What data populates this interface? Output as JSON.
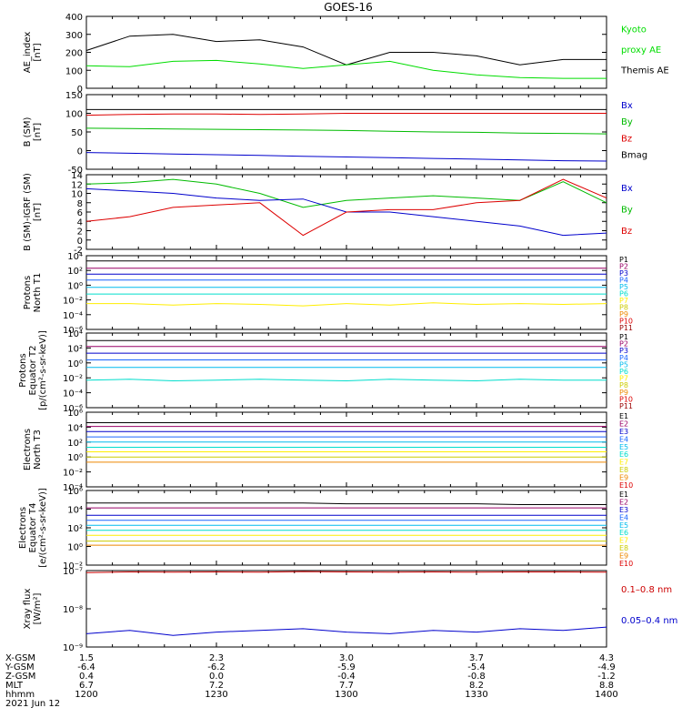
{
  "title": "GOES-16",
  "date_label": "2021 Jun 12",
  "panels": [
    {
      "ylabel": [
        "AE_index",
        "[nT]"
      ],
      "ticks": [
        "400",
        "300",
        "200",
        "100",
        "0"
      ],
      "legend": [
        {
          "text": "Kyoto",
          "color": "#00dd00"
        },
        {
          "text": "proxy AE",
          "color": "#00dd00"
        },
        {
          "text": "Themis AE",
          "color": "#000000"
        }
      ]
    },
    {
      "ylabel": [
        "B (SM)",
        "[nT]"
      ],
      "ticks": [
        "150",
        "100",
        "50",
        "0",
        "-50"
      ],
      "legend": [
        {
          "text": "Bx",
          "color": "#0000cc"
        },
        {
          "text": "By",
          "color": "#00bb00"
        },
        {
          "text": "Bz",
          "color": "#dd0000"
        },
        {
          "text": "Bmag",
          "color": "#000000"
        }
      ]
    },
    {
      "ylabel": [
        "B (SM)-IGRF (SM)",
        "[nT]"
      ],
      "ticks": [
        "14",
        "12",
        "10",
        "8",
        "6",
        "4",
        "2",
        "0",
        "-2"
      ],
      "legend": [
        {
          "text": "Bx",
          "color": "#0000cc"
        },
        {
          "text": "By",
          "color": "#00bb00"
        },
        {
          "text": "Bz",
          "color": "#dd0000"
        }
      ]
    },
    {
      "ylabel": [
        "Protons",
        "North T1"
      ],
      "ticks": [
        "10⁴",
        "10²",
        "10⁰",
        "10⁻²",
        "10⁻⁴",
        "10⁻⁶"
      ],
      "channels": [
        "P1",
        "P2",
        "P3",
        "P4",
        "P5",
        "P6",
        "P7",
        "P8",
        "P9",
        "P10",
        "P11"
      ]
    },
    {
      "ylabel": [
        "Protons",
        "Equator T2",
        "[p/(cm²-s-sr-keV)]"
      ],
      "ticks": [
        "10⁴",
        "10²",
        "10⁰",
        "10⁻²",
        "10⁻⁴",
        "10⁻⁶"
      ],
      "channels": [
        "P1",
        "P2",
        "P3",
        "P4",
        "P5",
        "P6",
        "P7",
        "P8",
        "P9",
        "P10",
        "P11"
      ]
    },
    {
      "ylabel": [
        "Electrons",
        "North T3"
      ],
      "ticks": [
        "10⁶",
        "10⁴",
        "10²",
        "10⁰",
        "10⁻²",
        "10⁻⁴"
      ],
      "channels": [
        "E1",
        "E2",
        "E3",
        "E4",
        "E5",
        "E6",
        "E7",
        "E8",
        "E9",
        "E10"
      ]
    },
    {
      "ylabel": [
        "Electrons",
        "Equator T4",
        "[e/(cm²-s-sr-keV)]"
      ],
      "ticks": [
        "10⁶",
        "10⁴",
        "10²",
        "10⁰",
        "10⁻²"
      ],
      "channels": [
        "E1",
        "E2",
        "E3",
        "E4",
        "E5",
        "E6",
        "E7",
        "E8",
        "E9",
        "E10"
      ]
    },
    {
      "ylabel": [
        "Xray flux",
        "[W/m²]"
      ],
      "ticks": [
        "10⁻⁷",
        "10⁻⁸",
        "10⁻⁹"
      ],
      "legend": [
        {
          "text": "0.1–0.8 nm",
          "color": "#cc0000"
        },
        {
          "text": "0.05–0.4 nm",
          "color": "#0000cc"
        }
      ]
    }
  ],
  "proton_colors": [
    "#000000",
    "#990066",
    "#0000cc",
    "#1a66ff",
    "#00bbee",
    "#00ddcc",
    "#ffee00",
    "#cccc00",
    "#ee8800",
    "#dd0000",
    "#990000"
  ],
  "electron_colors": [
    "#000000",
    "#990066",
    "#0000cc",
    "#1a66ff",
    "#00bbee",
    "#00ddcc",
    "#ffee00",
    "#cccc00",
    "#ee8800",
    "#dd0000",
    "#990000"
  ],
  "ephemeris": {
    "rows": [
      {
        "label": "X-GSM",
        "values": [
          "1.5",
          "2.3",
          "3.0",
          "3.7",
          "4.3"
        ]
      },
      {
        "label": "Y-GSM",
        "values": [
          "-6.4",
          "-6.2",
          "-5.9",
          "-5.4",
          "-4.9"
        ]
      },
      {
        "label": "Z-GSM",
        "values": [
          "0.4",
          "0.0",
          "-0.4",
          "-0.8",
          "-1.2"
        ]
      },
      {
        "label": "MLT",
        "values": [
          "6.7",
          "7.2",
          "7.7",
          "8.2",
          "8.8"
        ]
      },
      {
        "label": "hhmm",
        "values": [
          "1200",
          "1230",
          "1300",
          "1330",
          "1400"
        ]
      }
    ]
  },
  "chart_data": [
    {
      "type": "line",
      "ylabel": "AE_index [nT]",
      "ylim": [
        0,
        400
      ],
      "x": [
        1200,
        1210,
        1220,
        1230,
        1240,
        1250,
        1300,
        1310,
        1320,
        1330,
        1340,
        1350,
        1400
      ],
      "series": [
        {
          "name": "Themis AE",
          "values": [
            210,
            290,
            300,
            260,
            270,
            230,
            130,
            200,
            200,
            180,
            130,
            160,
            160
          ]
        },
        {
          "name": "Kyoto proxy AE",
          "values": [
            125,
            120,
            150,
            155,
            135,
            110,
            130,
            150,
            100,
            75,
            60,
            55,
            55
          ]
        }
      ]
    },
    {
      "type": "line",
      "ylabel": "B (SM) [nT]",
      "ylim": [
        -50,
        150
      ],
      "series": [
        {
          "name": "Bmag",
          "values": [
            110,
            110,
            110,
            110,
            110,
            110,
            110,
            110,
            110,
            110,
            110,
            110,
            110
          ]
        },
        {
          "name": "Bz",
          "values": [
            95,
            97,
            98,
            98,
            97,
            98,
            100,
            100,
            100,
            100,
            100,
            100,
            100
          ]
        },
        {
          "name": "By",
          "values": [
            60,
            59,
            58,
            57,
            56,
            55,
            54,
            52,
            50,
            49,
            47,
            46,
            45
          ]
        },
        {
          "name": "Bx",
          "values": [
            -5,
            -7,
            -9,
            -11,
            -13,
            -15,
            -17,
            -19,
            -21,
            -23,
            -25,
            -27,
            -28
          ]
        }
      ]
    },
    {
      "type": "line",
      "ylabel": "B (SM)-IGRF (SM) [nT]",
      "ylim": [
        -2,
        14
      ],
      "series": [
        {
          "name": "By",
          "values": [
            12,
            12.3,
            13,
            12,
            10,
            7,
            8.5,
            9,
            9.5,
            9,
            8.5,
            12.5,
            8
          ]
        },
        {
          "name": "Bx",
          "values": [
            11,
            10.5,
            10,
            9,
            8.5,
            8.8,
            6,
            6,
            5,
            4,
            3,
            1,
            1.5
          ]
        },
        {
          "name": "Bz",
          "values": [
            4,
            5,
            7,
            7.5,
            8,
            1,
            6,
            6.5,
            6.5,
            8,
            8.5,
            13,
            9
          ]
        }
      ]
    },
    {
      "type": "line",
      "ylabel": "Protons North T1",
      "log_scale": true,
      "ylim": [
        -6,
        4
      ],
      "series": [
        {
          "name": "P1",
          "values": [
            3.3,
            3.3,
            3.3,
            3.3,
            3.3,
            3.3,
            3.3,
            3.3,
            3.3,
            3.3,
            3.3,
            3.3,
            3.3
          ]
        },
        {
          "name": "P2",
          "values": [
            2.3,
            2.3,
            2.3,
            2.3,
            2.3,
            2.3,
            2.3,
            2.3,
            2.3,
            2.3,
            2.3,
            2.3,
            2.3
          ]
        },
        {
          "name": "P3",
          "values": [
            1.5,
            1.5,
            1.5,
            1.5,
            1.5,
            1.5,
            1.5,
            1.5,
            1.5,
            1.5,
            1.5,
            1.5,
            1.5
          ]
        },
        {
          "name": "P4",
          "values": [
            0.7,
            0.7,
            0.7,
            0.7,
            0.7,
            0.7,
            0.7,
            0.7,
            0.7,
            0.7,
            0.7,
            0.7,
            0.7
          ]
        },
        {
          "name": "P5",
          "values": [
            -0.3,
            -0.3,
            -0.3,
            -0.3,
            -0.3,
            -0.3,
            -0.3,
            -0.3,
            -0.3,
            -0.3,
            -0.3,
            -0.3,
            -0.3
          ]
        },
        {
          "name": "P6",
          "values": [
            -1.2,
            -1.2,
            -1.2,
            -1.2,
            -1.2,
            -1.2,
            -1.2,
            -1.2,
            -1.2,
            -1.2,
            -1.2,
            -1.2,
            -1.2
          ]
        },
        {
          "name": "P7",
          "values": [
            -2.5,
            -2.5,
            -2.7,
            -2.5,
            -2.6,
            -2.8,
            -2.5,
            -2.7,
            -2.4,
            -2.6,
            -2.5,
            -2.6,
            -2.5
          ]
        }
      ]
    },
    {
      "type": "line",
      "ylabel": "Protons Equator T2 [p/(cm2-s-sr-keV)]",
      "log_scale": true,
      "ylim": [
        -6,
        4
      ],
      "series": [
        {
          "name": "P1",
          "values": [
            3.0,
            3.0,
            3.0,
            3.0,
            3.0,
            3.0,
            3.0,
            3.0,
            3.0,
            3.0,
            3.0,
            3.0,
            3.0
          ]
        },
        {
          "name": "P2",
          "values": [
            2.2,
            2.2,
            2.2,
            2.2,
            2.2,
            2.2,
            2.2,
            2.2,
            2.2,
            2.2,
            2.2,
            2.2,
            2.2
          ]
        },
        {
          "name": "P3",
          "values": [
            1.3,
            1.3,
            1.3,
            1.3,
            1.3,
            1.3,
            1.3,
            1.3,
            1.3,
            1.3,
            1.3,
            1.3,
            1.3
          ]
        },
        {
          "name": "P4",
          "values": [
            0.4,
            0.4,
            0.4,
            0.4,
            0.4,
            0.4,
            0.4,
            0.4,
            0.4,
            0.4,
            0.4,
            0.4,
            0.4
          ]
        },
        {
          "name": "P5",
          "values": [
            -0.6,
            -0.6,
            -0.6,
            -0.6,
            -0.6,
            -0.6,
            -0.6,
            -0.6,
            -0.6,
            -0.6,
            -0.6,
            -0.6,
            -0.6
          ]
        },
        {
          "name": "P6",
          "values": [
            -2.3,
            -2.2,
            -2.4,
            -2.3,
            -2.2,
            -2.3,
            -2.4,
            -2.2,
            -2.3,
            -2.4,
            -2.2,
            -2.3,
            -2.3
          ]
        }
      ]
    },
    {
      "type": "line",
      "ylabel": "Electrons North T3",
      "log_scale": true,
      "ylim": [
        -4,
        6
      ],
      "series": [
        {
          "name": "E1",
          "values": [
            4.6,
            4.6,
            4.6,
            4.6,
            4.6,
            4.6,
            4.6,
            4.6,
            4.6,
            4.6,
            4.6,
            4.6,
            4.6
          ]
        },
        {
          "name": "E2",
          "values": [
            4.1,
            4.1,
            4.1,
            4.1,
            4.1,
            4.1,
            4.1,
            4.1,
            4.1,
            4.1,
            4.1,
            4.1,
            4.1
          ]
        },
        {
          "name": "E3",
          "values": [
            3.4,
            3.4,
            3.4,
            3.4,
            3.4,
            3.4,
            3.4,
            3.4,
            3.4,
            3.4,
            3.4,
            3.4,
            3.4
          ]
        },
        {
          "name": "E4",
          "values": [
            2.7,
            2.7,
            2.7,
            2.7,
            2.7,
            2.7,
            2.7,
            2.7,
            2.7,
            2.7,
            2.7,
            2.7,
            2.7
          ]
        },
        {
          "name": "E5",
          "values": [
            2.0,
            2.0,
            2.0,
            2.0,
            2.0,
            2.0,
            2.0,
            2.0,
            2.0,
            2.0,
            2.0,
            2.0,
            2.0
          ]
        },
        {
          "name": "E6",
          "values": [
            1.3,
            1.3,
            1.3,
            1.3,
            1.3,
            1.3,
            1.3,
            1.3,
            1.3,
            1.3,
            1.3,
            1.3,
            1.3
          ]
        },
        {
          "name": "E7",
          "values": [
            0.7,
            0.7,
            0.7,
            0.7,
            0.7,
            0.7,
            0.7,
            0.7,
            0.7,
            0.7,
            0.7,
            0.7,
            0.7
          ]
        },
        {
          "name": "E8",
          "values": [
            0.0,
            0.0,
            0.0,
            0.0,
            0.0,
            0.0,
            0.0,
            0.0,
            0.0,
            0.0,
            0.0,
            0.0,
            0.0
          ]
        },
        {
          "name": "E9",
          "values": [
            -0.7,
            -0.7,
            -0.7,
            -0.7,
            -0.7,
            -0.7,
            -0.7,
            -0.7,
            -0.7,
            -0.7,
            -0.7,
            -0.7,
            -0.7
          ]
        }
      ]
    },
    {
      "type": "line",
      "ylabel": "Electrons Equator T4 [e/(cm2-s-sr-keV)]",
      "log_scale": true,
      "ylim": [
        -3,
        6
      ],
      "series": [
        {
          "name": "E1",
          "values": [
            4.5,
            4.5,
            4.5,
            4.5,
            4.5,
            4.5,
            4.4,
            4.4,
            4.4,
            4.4,
            4.3,
            4.3,
            4.3
          ]
        },
        {
          "name": "E2",
          "values": [
            3.9,
            3.9,
            3.9,
            3.9,
            3.9,
            3.9,
            3.9,
            3.9,
            3.9,
            3.9,
            3.9,
            3.9,
            3.9
          ]
        },
        {
          "name": "E3",
          "values": [
            3.0,
            3.0,
            3.0,
            3.0,
            3.0,
            3.0,
            3.0,
            3.0,
            3.0,
            3.0,
            3.0,
            3.0,
            3.0
          ]
        },
        {
          "name": "E4",
          "values": [
            2.4,
            2.4,
            2.4,
            2.4,
            2.4,
            2.4,
            2.4,
            2.4,
            2.4,
            2.4,
            2.4,
            2.4,
            2.4
          ]
        },
        {
          "name": "E5",
          "values": [
            1.8,
            1.8,
            1.8,
            1.8,
            1.8,
            1.8,
            1.8,
            1.8,
            1.8,
            1.8,
            1.8,
            1.8,
            1.8
          ]
        },
        {
          "name": "E6",
          "values": [
            1.2,
            1.2,
            1.2,
            1.2,
            1.2,
            1.2,
            1.2,
            1.2,
            1.2,
            1.2,
            1.2,
            1.2,
            1.2
          ]
        },
        {
          "name": "E7",
          "values": [
            0.6,
            0.6,
            0.6,
            0.6,
            0.6,
            0.6,
            0.6,
            0.6,
            0.6,
            0.6,
            0.6,
            0.6,
            0.6
          ]
        },
        {
          "name": "E8",
          "values": [
            -0.1,
            -0.1,
            -0.1,
            -0.1,
            -0.1,
            -0.1,
            -0.1,
            -0.1,
            -0.1,
            -0.1,
            -0.1,
            -0.1,
            -0.1
          ]
        },
        {
          "name": "E9",
          "values": [
            -0.6,
            -0.6,
            -0.6,
            -0.6,
            -0.6,
            -0.6,
            -0.6,
            -0.6,
            -0.6,
            -0.6,
            -0.6,
            -0.6,
            -0.6
          ]
        }
      ]
    },
    {
      "type": "line",
      "ylabel": "Xray flux [W/m2]",
      "log_scale": true,
      "ylim": [
        -9.3,
        -7
      ],
      "series": [
        {
          "name": "0.1–0.8 nm",
          "values": [
            -7.06,
            -7.04,
            -7.05,
            -7.04,
            -7.05,
            -7.03,
            -7.04,
            -7.05,
            -7.04,
            -7.05,
            -7.04,
            -7.04,
            -7.05
          ]
        },
        {
          "name": "0.05–0.4 nm",
          "values": [
            -8.9,
            -8.8,
            -8.95,
            -8.85,
            -8.8,
            -8.75,
            -8.85,
            -8.9,
            -8.8,
            -8.85,
            -8.75,
            -8.8,
            -8.7
          ]
        }
      ]
    }
  ]
}
